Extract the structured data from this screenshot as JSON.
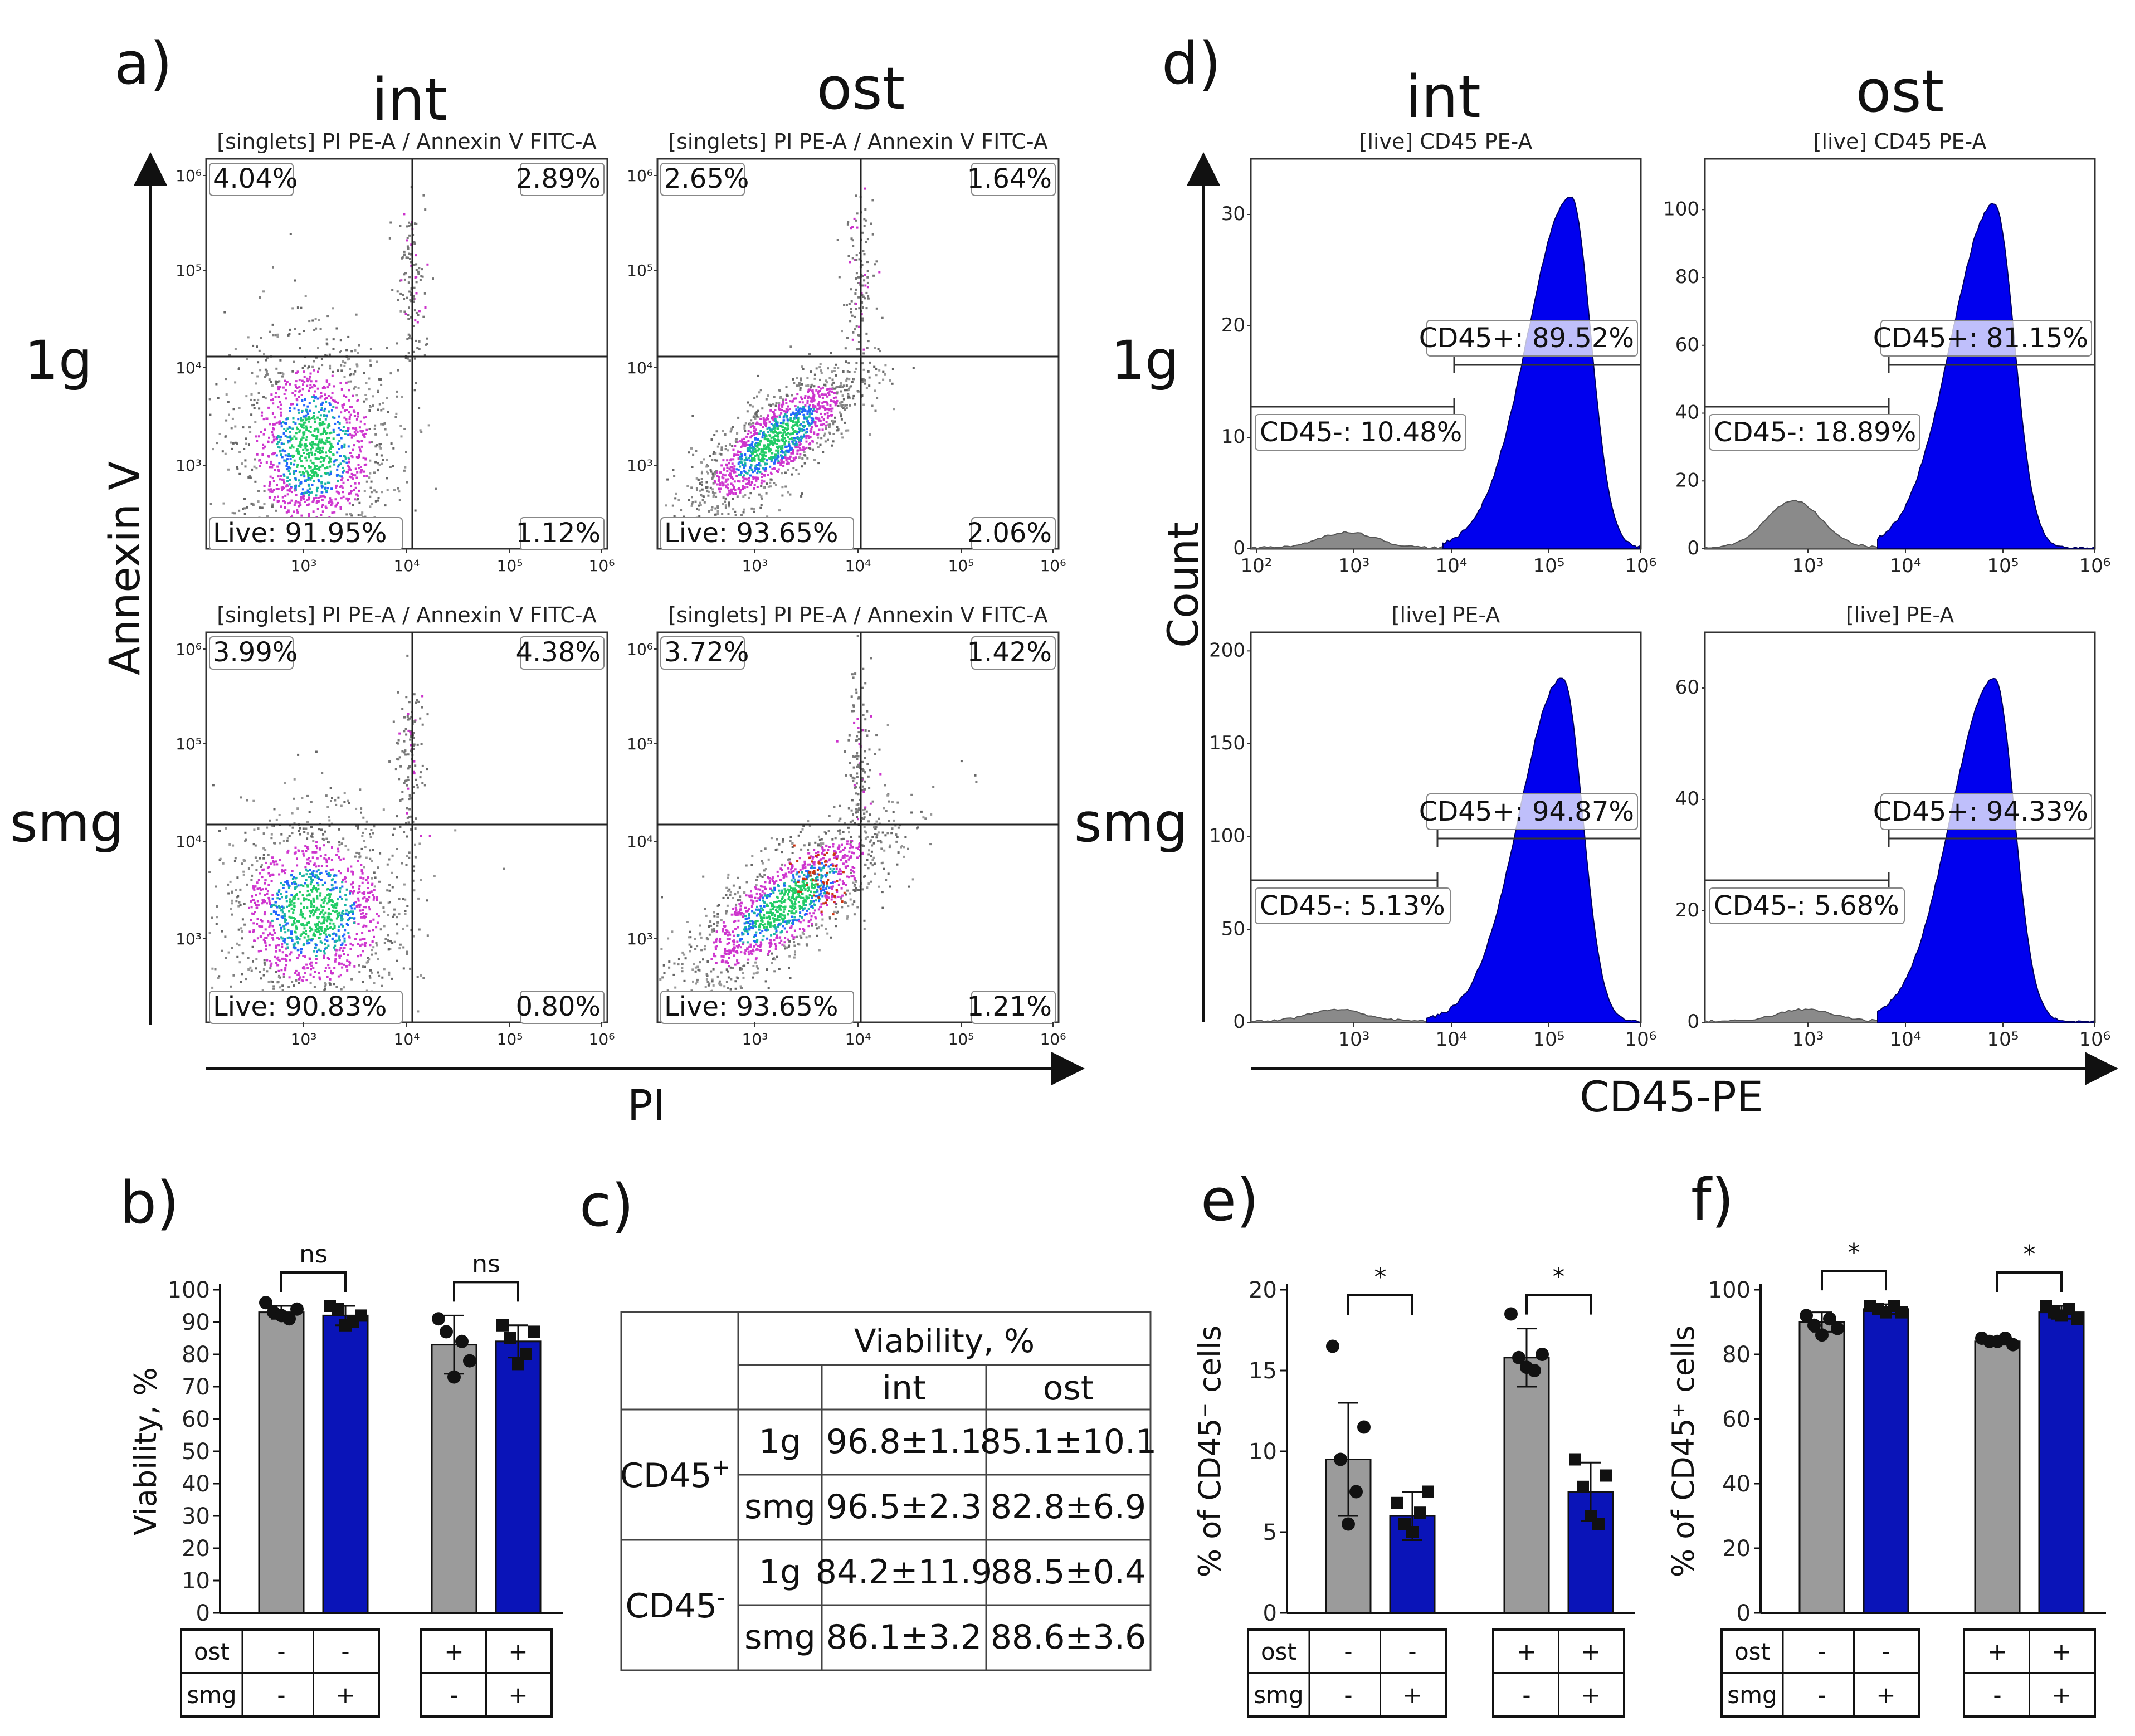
{
  "panels": {
    "a": "a)",
    "b": "b)",
    "c": "c)",
    "d": "d)",
    "e": "e)",
    "f": "f)"
  },
  "columns": {
    "int": "int",
    "ost": "ost"
  },
  "rows": {
    "g1": "1g",
    "smg": "smg"
  },
  "panel_a": {
    "plot_title": "[singlets] PI PE-A / Annexin V FITC-A",
    "y_axis_title": "Annexin V",
    "x_axis_title": "PI",
    "ticks": [
      "10³",
      "10⁴",
      "10⁵",
      "10⁶"
    ],
    "plots": [
      {
        "q_ul": "4.04%",
        "q_ur": "2.89%",
        "q_ll": "Live: 91.95%",
        "q_lr": "1.12%"
      },
      {
        "q_ul": "2.65%",
        "q_ur": "1.64%",
        "q_ll": "Live: 93.65%",
        "q_lr": "2.06%"
      },
      {
        "q_ul": "3.99%",
        "q_ur": "4.38%",
        "q_ll": "Live: 90.83%",
        "q_lr": "0.80%"
      },
      {
        "q_ul": "3.72%",
        "q_ur": "1.42%",
        "q_ll": "Live: 93.65%",
        "q_lr": "1.21%"
      }
    ]
  },
  "panel_d": {
    "y_axis_title": "Count",
    "x_axis_title": "CD45-PE",
    "x_ticks_full": [
      "10²",
      "10³",
      "10⁴",
      "10⁵",
      "10⁶"
    ],
    "x_ticks": [
      "10³",
      "10⁴",
      "10⁵",
      "10⁶"
    ],
    "plots": [
      {
        "title": "[live] CD45 PE-A",
        "y_ticks": [
          "0",
          "10",
          "20",
          "30"
        ],
        "pos": "CD45+: 89.52%",
        "neg": "CD45-: 10.48%"
      },
      {
        "title": "[live] CD45 PE-A",
        "y_ticks": [
          "0",
          "20",
          "40",
          "60",
          "80",
          "100"
        ],
        "pos": "CD45+: 81.15%",
        "neg": "CD45-: 18.89%"
      },
      {
        "title": "[live] PE-A",
        "y_ticks": [
          "0",
          "50",
          "100",
          "150",
          "200"
        ],
        "pos": "CD45+: 94.87%",
        "neg": "CD45-: 5.13%"
      },
      {
        "title": "[live] PE-A",
        "y_ticks": [
          "0",
          "20",
          "40",
          "60"
        ],
        "pos": "CD45+: 94.33%",
        "neg": "CD45-: 5.68%"
      }
    ]
  },
  "conditions": {
    "ost_label": "ost",
    "smg_label": "smg",
    "ost": [
      "-",
      "-",
      "+",
      "+"
    ],
    "smg": [
      "-",
      "+",
      "-",
      "+"
    ]
  },
  "table": {
    "header": "Viability, %",
    "cols": [
      "int",
      "ost"
    ],
    "groups": [
      {
        "label": "CD45",
        "sup": "+",
        "rows": [
          {
            "name": "1g",
            "int": "96.8±1.1",
            "ost": "85.1±10.1"
          },
          {
            "name": "smg",
            "int": "96.5±2.3",
            "ost": "82.8±6.9"
          }
        ]
      },
      {
        "label": "CD45",
        "sup": "-",
        "rows": [
          {
            "name": "1g",
            "int": "84.2±11.9",
            "ost": "88.5±0.4"
          },
          {
            "name": "smg",
            "int": "86.1±3.2",
            "ost": "88.6±3.6"
          }
        ]
      }
    ]
  },
  "colors": {
    "gray": "#9b9b9b",
    "blue": "#0a14b8",
    "hist_blue": "#0000ee",
    "hist_gray": "#8a8a8a"
  },
  "chart_data": [
    {
      "id": "b",
      "type": "bar",
      "categories": [
        "ost- smg-",
        "ost- smg+",
        "ost+ smg-",
        "ost+ smg+"
      ],
      "values": [
        93,
        92,
        83,
        84
      ],
      "errors": [
        2,
        3,
        9,
        5
      ],
      "points": [
        [
          96,
          93,
          92,
          91,
          94
        ],
        [
          95,
          94,
          89,
          90,
          92
        ],
        [
          91,
          87,
          73,
          84,
          78
        ],
        [
          89,
          85,
          77,
          80,
          87
        ]
      ],
      "ylabel": "Viability, %",
      "ylim": [
        0,
        100
      ],
      "yticks": [
        "0",
        "10",
        "20",
        "30",
        "40",
        "50",
        "60",
        "70",
        "80",
        "90",
        "100"
      ],
      "significance": [
        "ns",
        "ns"
      ]
    },
    {
      "id": "e",
      "type": "bar",
      "categories": [
        "ost- smg-",
        "ost- smg+",
        "ost+ smg-",
        "ost+ smg+"
      ],
      "values": [
        9.5,
        6.0,
        15.8,
        7.5
      ],
      "errors": [
        3.5,
        1.5,
        1.8,
        1.8
      ],
      "points": [
        [
          16.5,
          9.5,
          5.5,
          7.5,
          11.5
        ],
        [
          6.8,
          5.5,
          5.0,
          6.2,
          7.5
        ],
        [
          18.5,
          15.8,
          15.2,
          15.0,
          16.0
        ],
        [
          9.5,
          7.8,
          6.0,
          5.5,
          8.5
        ]
      ],
      "ylabel": "% of CD45⁻ cells",
      "ylim": [
        0,
        20
      ],
      "yticks": [
        "0",
        "5",
        "10",
        "15",
        "20"
      ],
      "significance": [
        "*",
        "*"
      ]
    },
    {
      "id": "f",
      "type": "bar",
      "categories": [
        "ost- smg-",
        "ost- smg+",
        "ost+ smg-",
        "ost+ smg+"
      ],
      "values": [
        90,
        94,
        84,
        93
      ],
      "errors": [
        3,
        1.5,
        1,
        2
      ],
      "points": [
        [
          92,
          89,
          86,
          91,
          88
        ],
        [
          95,
          94,
          93,
          95,
          93
        ],
        [
          85,
          84,
          84,
          85,
          83
        ],
        [
          95,
          93,
          92,
          94,
          91
        ]
      ],
      "ylabel": "% of CD45⁺ cells",
      "ylim": [
        0,
        100
      ],
      "yticks": [
        "0",
        "20",
        "40",
        "60",
        "80",
        "100"
      ],
      "significance": [
        "*",
        "*"
      ]
    }
  ]
}
